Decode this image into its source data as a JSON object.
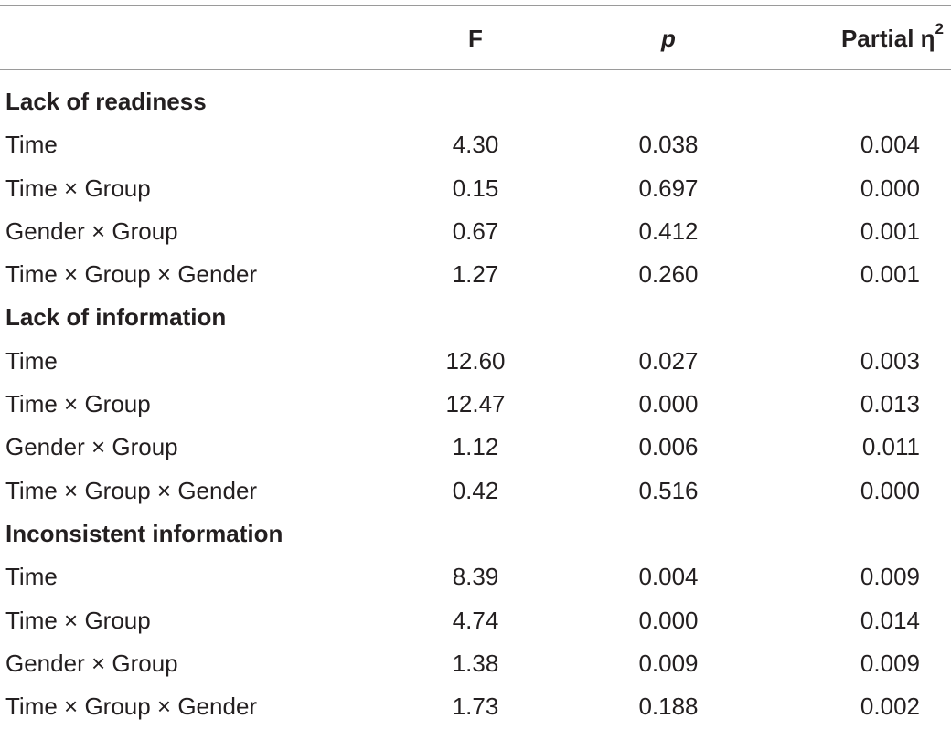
{
  "header": {
    "label": "",
    "f": "F",
    "p": "p",
    "eta_base": "Partial η",
    "eta_sup": "2"
  },
  "sections": [
    {
      "title": "Lack of readiness",
      "rows": [
        {
          "label": "Time",
          "f": "4.30",
          "p": "0.038",
          "eta": "0.004"
        },
        {
          "label": "Time × Group",
          "f": "0.15",
          "p": "0.697",
          "eta": "0.000"
        },
        {
          "label": "Gender × Group",
          "f": "0.67",
          "p": "0.412",
          "eta": "0.001"
        },
        {
          "label": "Time × Group × Gender",
          "f": "1.27",
          "p": "0.260",
          "eta": "0.001"
        }
      ]
    },
    {
      "title": "Lack of information",
      "rows": [
        {
          "label": "Time",
          "f": "12.60",
          "p": "0.027",
          "eta": "0.003"
        },
        {
          "label": "Time × Group",
          "f": "12.47",
          "p": "0.000",
          "eta": "0.013"
        },
        {
          "label": "Gender × Group",
          "f": "1.12",
          "p": "0.006",
          "eta": "0.011"
        },
        {
          "label": "Time × Group × Gender",
          "f": "0.42",
          "p": "0.516",
          "eta": "0.000"
        }
      ]
    },
    {
      "title": "Inconsistent information",
      "rows": [
        {
          "label": "Time",
          "f": "8.39",
          "p": "0.004",
          "eta": "0.009"
        },
        {
          "label": "Time × Group",
          "f": "4.74",
          "p": "0.000",
          "eta": "0.014"
        },
        {
          "label": "Gender × Group",
          "f": "1.38",
          "p": "0.009",
          "eta": "0.009"
        },
        {
          "label": "Time × Group × Gender",
          "f": "1.73",
          "p": "0.188",
          "eta": "0.002"
        }
      ]
    }
  ]
}
